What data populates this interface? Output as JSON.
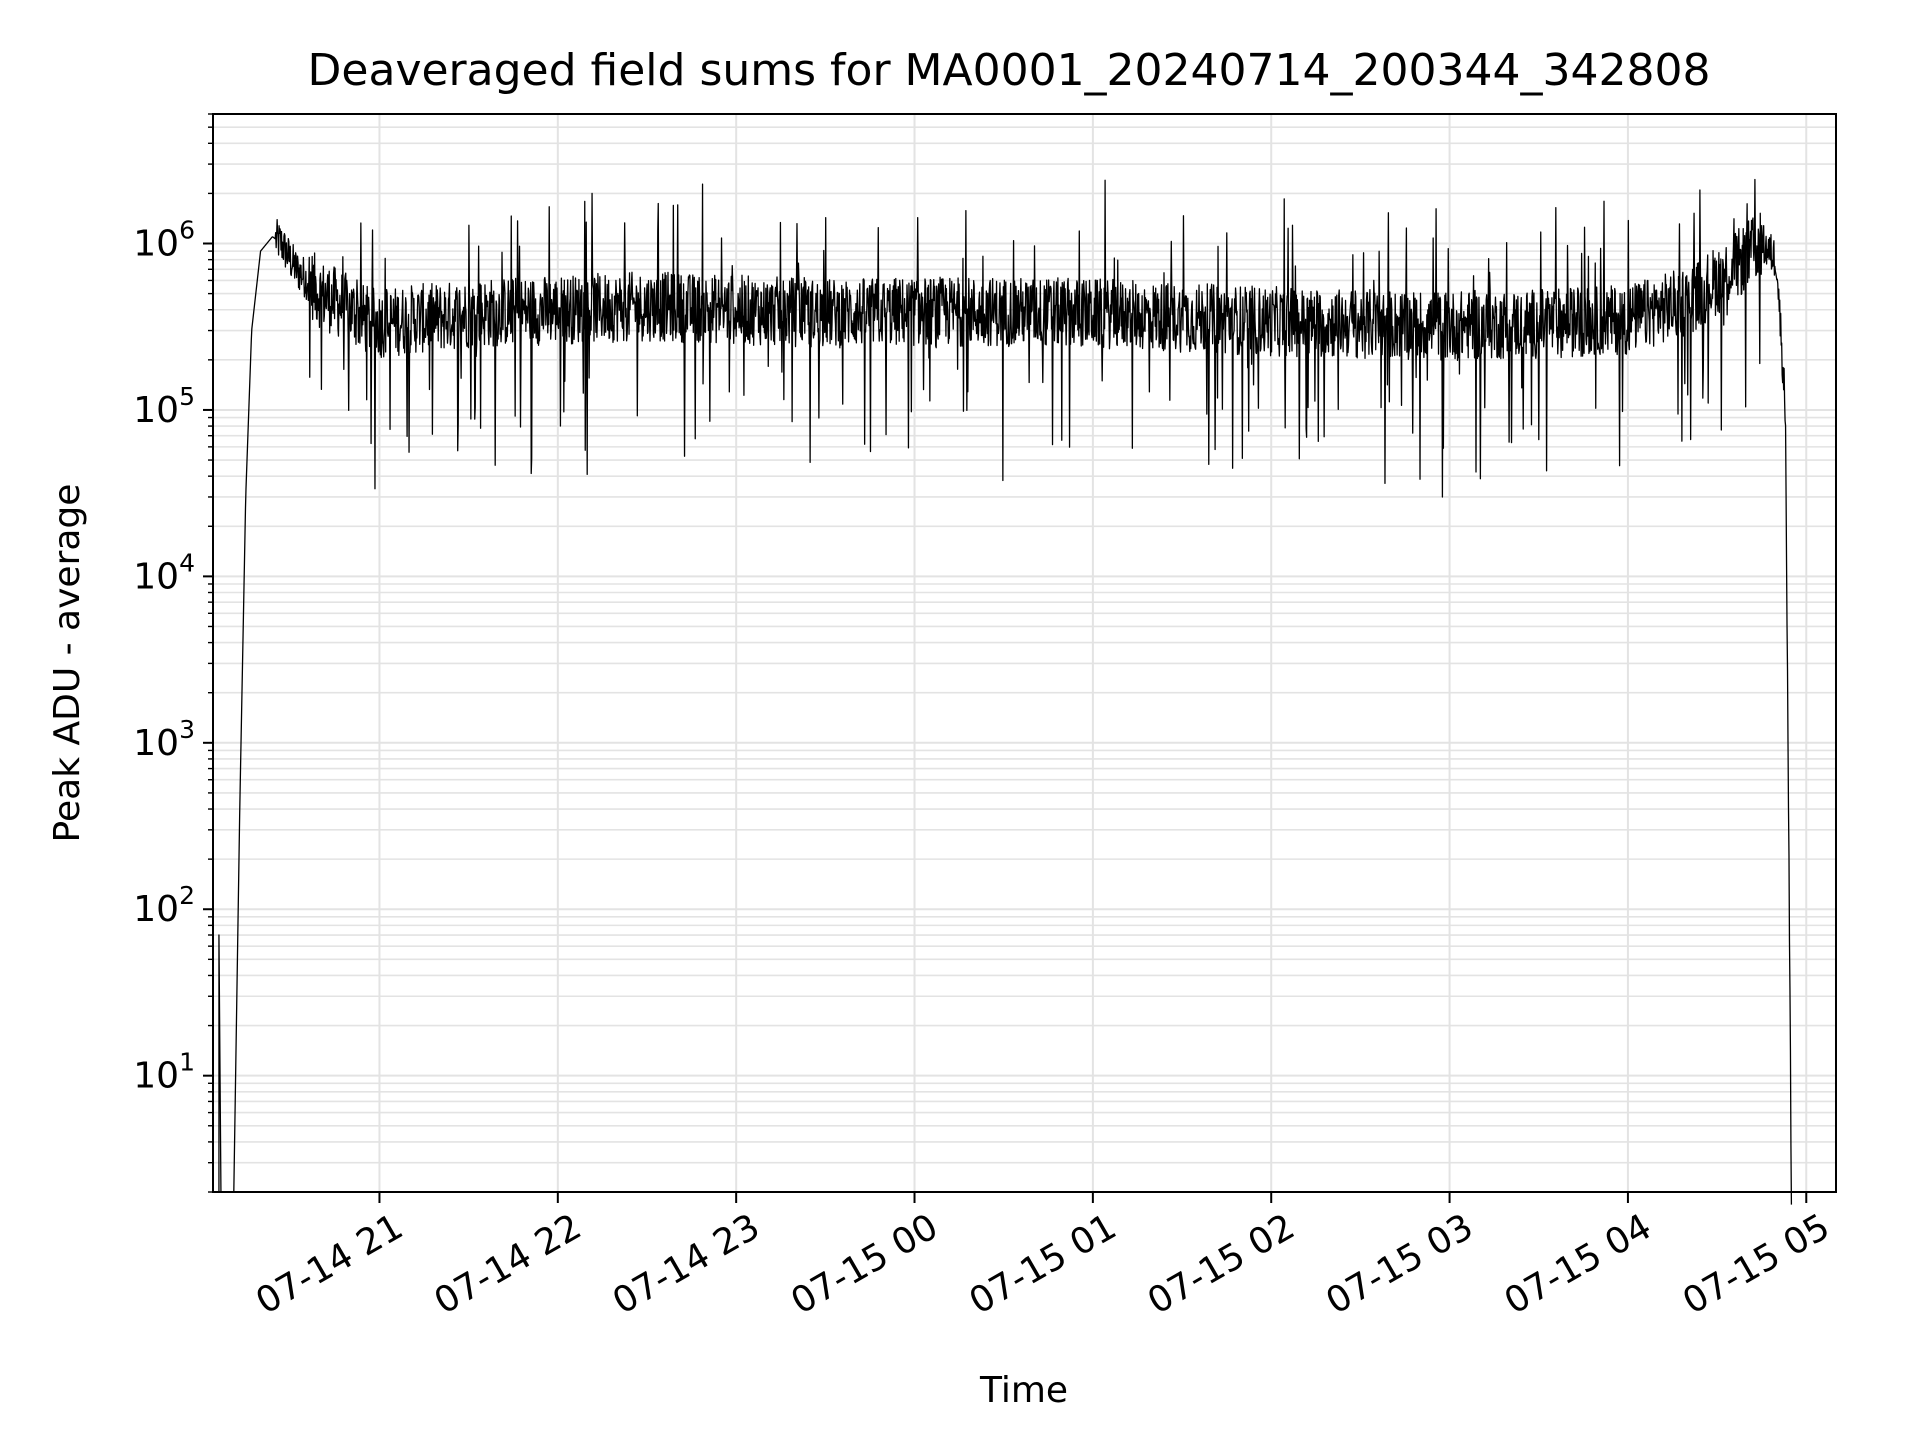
{
  "chart_data": {
    "type": "line",
    "title": "Deaveraged field sums for MA0001_20240714_200344_342808",
    "xlabel": "Time",
    "ylabel": "Peak ADU - average",
    "yscale": "log",
    "ylim": [
      2,
      6000000
    ],
    "xlim": [
      "07-14 20:04",
      "07-15 05:10"
    ],
    "grid": true,
    "x_ticks": [
      "07-14 21",
      "07-14 22",
      "07-14 23",
      "07-15 00",
      "07-15 01",
      "07-15 02",
      "07-15 03",
      "07-15 04",
      "07-15 05"
    ],
    "y_ticks": [
      {
        "base": "10",
        "exp": "1",
        "value": 10
      },
      {
        "base": "10",
        "exp": "2",
        "value": 100
      },
      {
        "base": "10",
        "exp": "3",
        "value": 1000
      },
      {
        "base": "10",
        "exp": "4",
        "value": 10000
      },
      {
        "base": "10",
        "exp": "5",
        "value": 100000
      },
      {
        "base": "10",
        "exp": "6",
        "value": 1000000
      }
    ],
    "line_color": "#000000",
    "series": [
      {
        "x": [
          "07-14 20:11",
          "07-14 20:13",
          "07-14 20:15",
          "07-14 20:17",
          "07-14 20:20",
          "07-14 20:24",
          "07-14 20:27",
          "07-14 20:30",
          "07-14 20:32",
          "07-14 20:36",
          "07-14 20:40",
          "07-14 20:45",
          "07-14 20:50",
          "07-14 20:55",
          "07-14 21:00",
          "07-14 21:10",
          "07-14 21:20",
          "07-14 21:30",
          "07-14 22:00",
          "07-14 22:30",
          "07-14 23:00",
          "07-14 23:30",
          "07-15 00:00",
          "07-15 00:30",
          "07-15 01:00",
          "07-15 01:30",
          "07-15 02:00",
          "07-15 02:30",
          "07-15 03:00",
          "07-15 03:30",
          "07-15 04:00",
          "07-15 04:20",
          "07-15 04:35",
          "07-15 04:45",
          "07-15 04:50",
          "07-15 04:53",
          "07-15 04:55"
        ],
        "y": [
          2,
          400,
          30000,
          300000,
          900000,
          1100000,
          1000000,
          800000,
          700000,
          600000,
          500000,
          450000,
          400000,
          350000,
          330000,
          350000,
          360000,
          380000,
          400000,
          420000,
          400000,
          380000,
          390000,
          390000,
          380000,
          360000,
          340000,
          330000,
          320000,
          330000,
          350000,
          450000,
          700000,
          1000000,
          800000,
          100000,
          2
        ]
      }
    ],
    "noise": {
      "low_dips_to": 30000,
      "spikes_to": 3200000
    }
  }
}
